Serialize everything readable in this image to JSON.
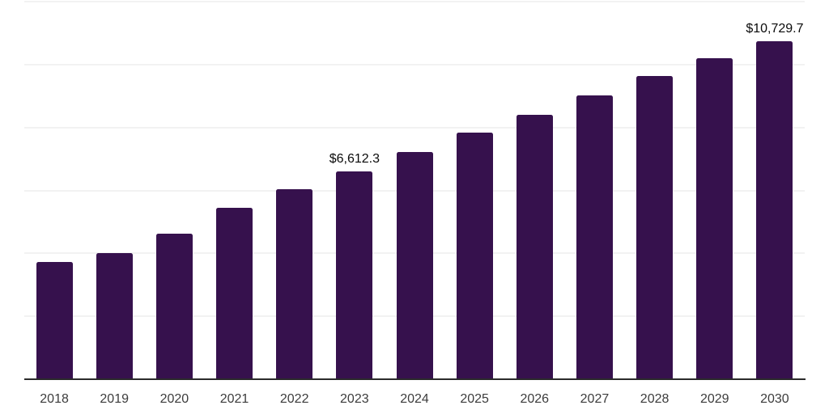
{
  "chart_data": {
    "type": "bar",
    "title": "",
    "xlabel": "",
    "ylabel": "",
    "categories": [
      "2018",
      "2019",
      "2020",
      "2021",
      "2022",
      "2023",
      "2024",
      "2025",
      "2026",
      "2027",
      "2028",
      "2029",
      "2030"
    ],
    "values": [
      3726,
      4000,
      4617,
      5455,
      6030,
      6612.3,
      7229,
      7830,
      8395,
      9028,
      9629,
      10194,
      10729.7
    ],
    "value_labels": {
      "2023": "$6,612.3",
      "2030": "$10,729.7"
    },
    "ylim": [
      0,
      12000
    ],
    "gridline_step": 2000,
    "grid": true,
    "legend": "none",
    "colors": {
      "bar": "#36114D",
      "axis_line": "#2b2b2b",
      "gridline": "#f2f2f2",
      "tick_label": "#3c3c3c",
      "value_label": "#0a0a0a",
      "background": "#ffffff"
    }
  }
}
